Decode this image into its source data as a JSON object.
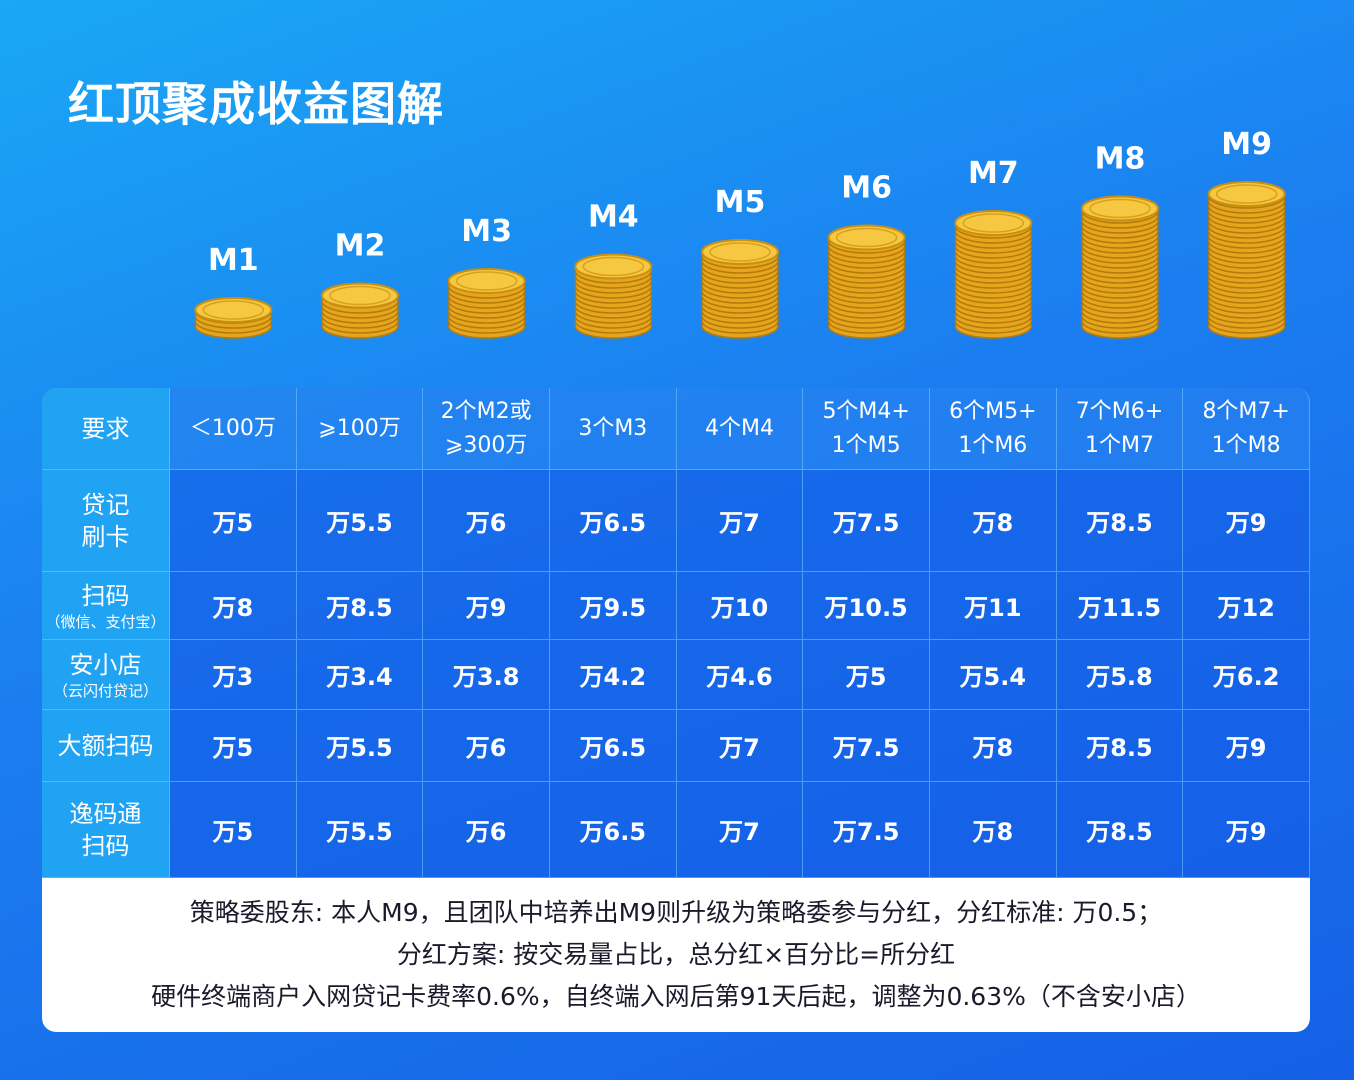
{
  "title": "红顶聚成收益图解",
  "levels": [
    "M1",
    "M2",
    "M3",
    "M4",
    "M5",
    "M6",
    "M7",
    "M8",
    "M9"
  ],
  "table": {
    "header_label": "要求",
    "requirements": [
      [
        "＜100万"
      ],
      [
        "⩾100万"
      ],
      [
        "2个M2或",
        "⩾300万"
      ],
      [
        "3个M3"
      ],
      [
        "4个M4"
      ],
      [
        "5个M4+",
        "1个M5"
      ],
      [
        "6个M5+",
        "1个M6"
      ],
      [
        "7个M6+",
        "1个M7"
      ],
      [
        "8个M7+",
        "1个M8"
      ]
    ],
    "rows": [
      {
        "label": [
          "贷记",
          "刷卡"
        ],
        "values": [
          "万5",
          "万5.5",
          "万6",
          "万6.5",
          "万7",
          "万7.5",
          "万8",
          "万8.5",
          "万9"
        ]
      },
      {
        "label": [
          "扫码"
        ],
        "note": "（微信、支付宝）",
        "values": [
          "万8",
          "万8.5",
          "万9",
          "万9.5",
          "万10",
          "万10.5",
          "万11",
          "万11.5",
          "万12"
        ]
      },
      {
        "label": [
          "安小店"
        ],
        "note": "（云闪付贷记）",
        "values": [
          "万3",
          "万3.4",
          "万3.8",
          "万4.2",
          "万4.6",
          "万5",
          "万5.4",
          "万5.8",
          "万6.2"
        ]
      },
      {
        "label": [
          "大额扫码"
        ],
        "values": [
          "万5",
          "万5.5",
          "万6",
          "万6.5",
          "万7",
          "万7.5",
          "万8",
          "万8.5",
          "万9"
        ]
      },
      {
        "label": [
          "逸码通",
          "扫码"
        ],
        "values": [
          "万5",
          "万5.5",
          "万6",
          "万6.5",
          "万7",
          "万7.5",
          "万8",
          "万8.5",
          "万9"
        ]
      }
    ]
  },
  "footer": [
    "策略委股东: 本人M9，且团队中培养出M9则升级为策略委参与分红，分红标准: 万0.5；",
    "分红方案: 按交易量占比，总分红×百分比=所分红",
    "硬件终端商户入网贷记卡费率0.6%，自终端入网后第91天后起，调整为0.63%（不含安小店）"
  ]
}
